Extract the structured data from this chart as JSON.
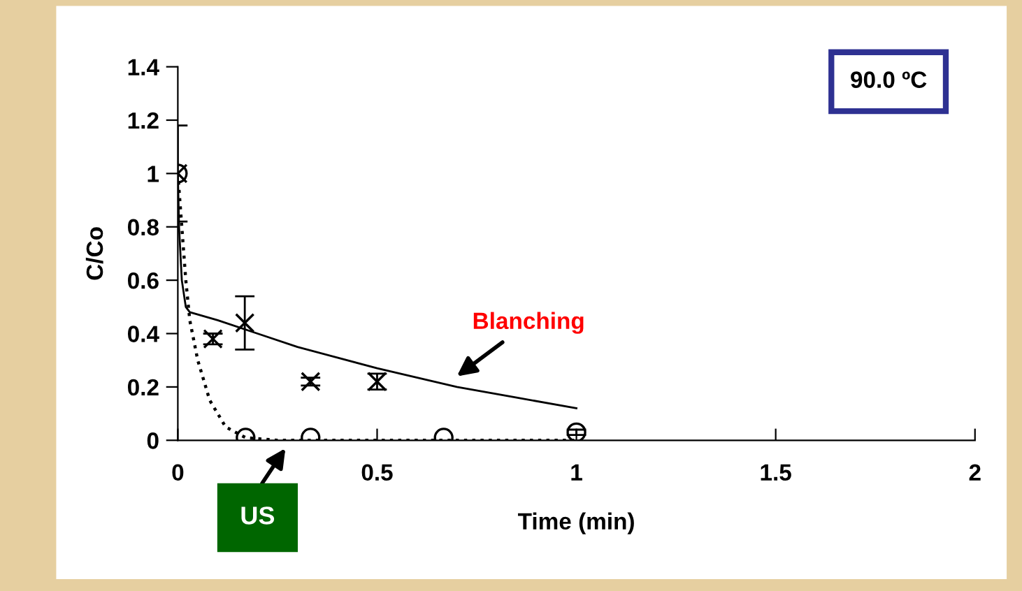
{
  "chart_data": {
    "type": "scatter",
    "xlabel": "Time (min)",
    "ylabel": "C/Co",
    "series": [
      {
        "color": "#000000",
        "marker": "cross",
        "x": [
          0,
          0.088,
          0.168,
          0.333,
          0.5
        ],
        "values": [
          1.0,
          0.38,
          0.44,
          0.22,
          0.22
        ],
        "errors": [
          0.18,
          0.02,
          0.1,
          0.015,
          0.03
        ]
      },
      {
        "color": "#000000",
        "marker": "circle",
        "x": [
          0,
          0.17,
          0.333,
          0.667,
          1.0
        ],
        "values": [
          1.0,
          0.01,
          0.01,
          0.01,
          0.03
        ],
        "errors": [
          null,
          null,
          null,
          null,
          0.01
        ]
      },
      {
        "type": "line",
        "color": "#000000",
        "marker": "none",
        "line_style": "solid",
        "x": [
          0,
          0.003,
          0.01,
          0.02,
          0.03,
          0.1,
          0.2,
          0.3,
          0.4,
          0.5,
          0.7,
          0.85,
          1.0
        ],
        "values": [
          1.0,
          0.8,
          0.6,
          0.5,
          0.48,
          0.45,
          0.4,
          0.35,
          0.31,
          0.27,
          0.2,
          0.16,
          0.12
        ]
      },
      {
        "type": "line",
        "color": "#000000",
        "marker": "none",
        "line_style": "dotted",
        "x": [
          0,
          0.01,
          0.02,
          0.03,
          0.05,
          0.08,
          0.12,
          0.17,
          0.25,
          0.5,
          0.75,
          1.0
        ],
        "values": [
          1.0,
          0.8,
          0.6,
          0.45,
          0.3,
          0.15,
          0.05,
          0.01,
          0,
          0,
          0,
          0
        ]
      }
    ],
    "xlim": [
      0,
      2
    ],
    "xticks": [
      0,
      0.5,
      1,
      1.5,
      2
    ],
    "ylim": [
      0,
      1.4
    ],
    "yticks": [
      0,
      0.2,
      0.4,
      0.6,
      0.8,
      1,
      1.2,
      1.4
    ],
    "grid": false,
    "legend": false,
    "annotations": [
      "90.0 ºC",
      {
        "text": "Blanching",
        "x": 0.7,
        "y": 0.2
      },
      {
        "text": "US",
        "x": 0.28,
        "y": 0
      }
    ]
  }
}
